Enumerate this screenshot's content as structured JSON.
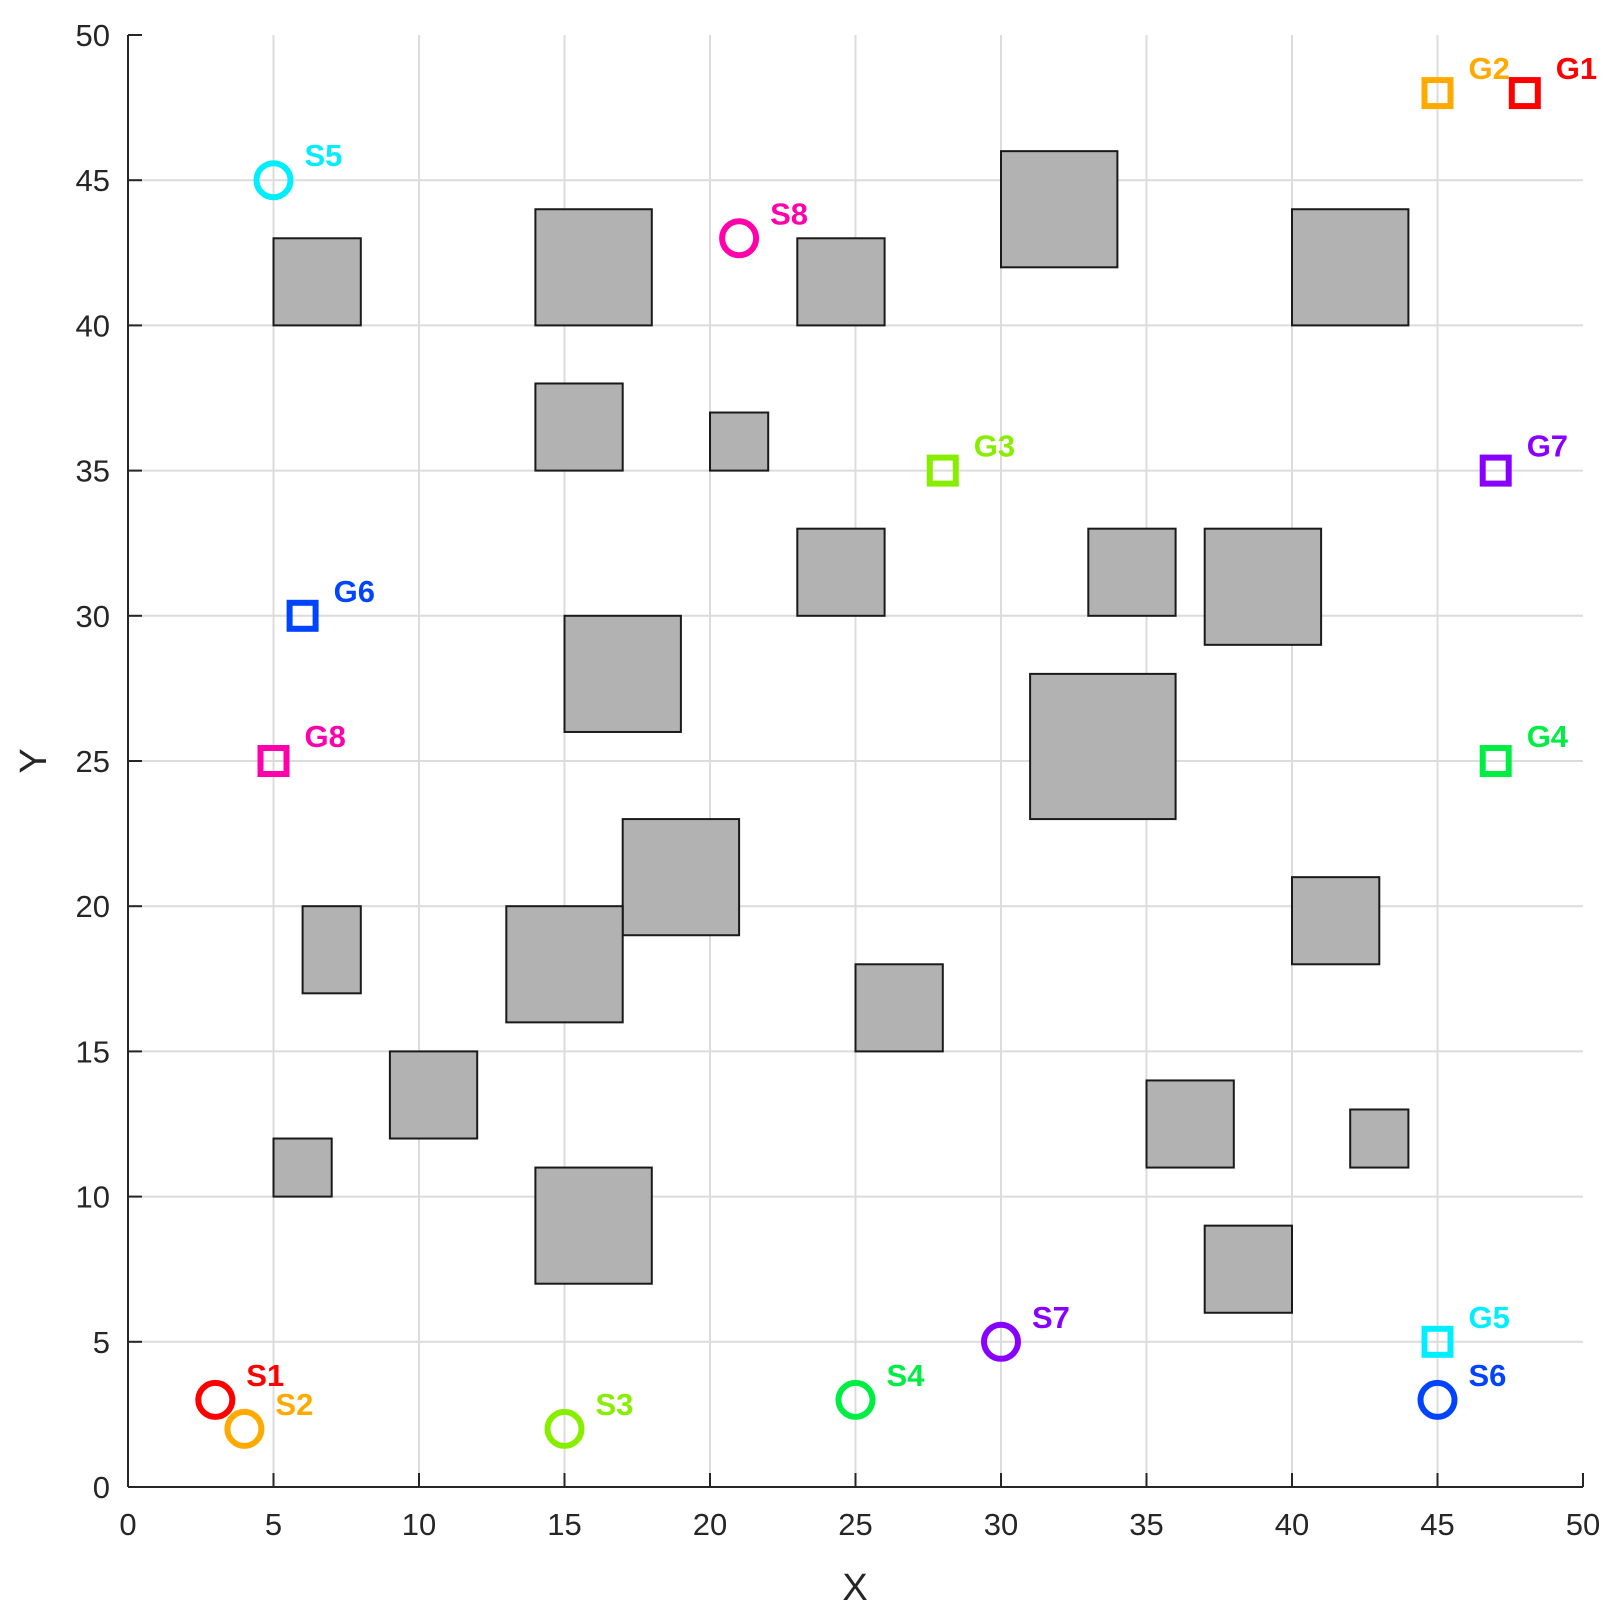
{
  "chart_data": {
    "type": "scatter",
    "title": "",
    "xlabel": "X",
    "ylabel": "Y",
    "xlim": [
      0,
      50
    ],
    "ylim": [
      0,
      50
    ],
    "xticks": [
      0,
      5,
      10,
      15,
      20,
      25,
      30,
      35,
      40,
      45,
      50
    ],
    "yticks": [
      0,
      5,
      10,
      15,
      20,
      25,
      30,
      35,
      40,
      45,
      50
    ],
    "grid": true,
    "obstacles": [
      {
        "x": [
          5,
          8
        ],
        "y": [
          40,
          43
        ]
      },
      {
        "x": [
          14,
          18
        ],
        "y": [
          40,
          44
        ]
      },
      {
        "x": [
          23,
          26
        ],
        "y": [
          40,
          43
        ]
      },
      {
        "x": [
          30,
          34
        ],
        "y": [
          42,
          46
        ]
      },
      {
        "x": [
          40,
          44
        ],
        "y": [
          40,
          44
        ]
      },
      {
        "x": [
          14,
          17
        ],
        "y": [
          35,
          38
        ]
      },
      {
        "x": [
          20,
          22
        ],
        "y": [
          35,
          37
        ]
      },
      {
        "x": [
          23,
          26
        ],
        "y": [
          30,
          33
        ]
      },
      {
        "x": [
          33,
          36
        ],
        "y": [
          30,
          33
        ]
      },
      {
        "x": [
          37,
          41
        ],
        "y": [
          29,
          33
        ]
      },
      {
        "x": [
          15,
          19
        ],
        "y": [
          26,
          30
        ]
      },
      {
        "x": [
          31,
          36
        ],
        "y": [
          23,
          28
        ]
      },
      {
        "x": [
          17,
          21
        ],
        "y": [
          19,
          23
        ]
      },
      {
        "x": [
          6,
          8
        ],
        "y": [
          17,
          20
        ]
      },
      {
        "x": [
          13,
          17
        ],
        "y": [
          16,
          20
        ]
      },
      {
        "x": [
          40,
          43
        ],
        "y": [
          18,
          21
        ]
      },
      {
        "x": [
          25,
          28
        ],
        "y": [
          15,
          18
        ]
      },
      {
        "x": [
          9,
          12
        ],
        "y": [
          12,
          15
        ]
      },
      {
        "x": [
          35,
          38
        ],
        "y": [
          11,
          14
        ]
      },
      {
        "x": [
          42,
          44
        ],
        "y": [
          11,
          13
        ]
      },
      {
        "x": [
          5,
          7
        ],
        "y": [
          10,
          12
        ]
      },
      {
        "x": [
          14,
          18
        ],
        "y": [
          7,
          11
        ]
      },
      {
        "x": [
          37,
          40
        ],
        "y": [
          6,
          9
        ]
      }
    ],
    "series": [
      {
        "name": "S1",
        "label": "S1",
        "marker": "circle",
        "color": "#ff0000",
        "x": 3,
        "y": 3
      },
      {
        "name": "S2",
        "label": "S2",
        "marker": "circle",
        "color": "#ffaa00",
        "x": 4,
        "y": 2
      },
      {
        "name": "S3",
        "label": "S3",
        "marker": "circle",
        "color": "#88ee00",
        "x": 15,
        "y": 2
      },
      {
        "name": "S4",
        "label": "S4",
        "marker": "circle",
        "color": "#00ee44",
        "x": 25,
        "y": 3
      },
      {
        "name": "S5",
        "label": "S5",
        "marker": "circle",
        "color": "#00eeff",
        "x": 5,
        "y": 45
      },
      {
        "name": "S6",
        "label": "S6",
        "marker": "circle",
        "color": "#0044ff",
        "x": 45,
        "y": 3
      },
      {
        "name": "S7",
        "label": "S7",
        "marker": "circle",
        "color": "#8800ff",
        "x": 30,
        "y": 5
      },
      {
        "name": "S8",
        "label": "S8",
        "marker": "circle",
        "color": "#ff00aa",
        "x": 21,
        "y": 43
      },
      {
        "name": "G1",
        "label": "G1",
        "marker": "square",
        "color": "#ff0000",
        "x": 48,
        "y": 48
      },
      {
        "name": "G2",
        "label": "G2",
        "marker": "square",
        "color": "#ffaa00",
        "x": 45,
        "y": 48
      },
      {
        "name": "G3",
        "label": "G3",
        "marker": "square",
        "color": "#88ee00",
        "x": 28,
        "y": 35
      },
      {
        "name": "G4",
        "label": "G4",
        "marker": "square",
        "color": "#00ee44",
        "x": 47,
        "y": 25
      },
      {
        "name": "G5",
        "label": "G5",
        "marker": "square",
        "color": "#00eeff",
        "x": 45,
        "y": 5
      },
      {
        "name": "G6",
        "label": "G6",
        "marker": "square",
        "color": "#0044ff",
        "x": 6,
        "y": 30
      },
      {
        "name": "G7",
        "label": "G7",
        "marker": "square",
        "color": "#8800ff",
        "x": 47,
        "y": 35
      },
      {
        "name": "G8",
        "label": "G8",
        "marker": "square",
        "color": "#ff00aa",
        "x": 5,
        "y": 25
      }
    ],
    "colors": {
      "obstacle_fill": "#b2b2b2",
      "obstacle_stroke": "#1a1a1a",
      "grid": "#dcdcdc",
      "axis": "#262626"
    }
  }
}
